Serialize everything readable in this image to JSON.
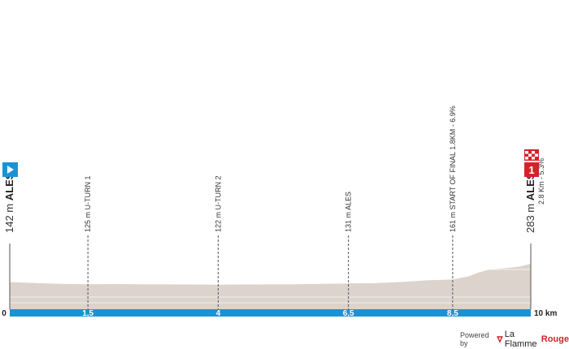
{
  "chart_data": {
    "type": "area",
    "xlabel": "",
    "ylabel": "",
    "xlim": [
      0,
      10
    ],
    "x_tick_labels": [
      "0",
      "1,5",
      "4",
      "6,5",
      "8,5",
      "10 km"
    ],
    "x_ticks": [
      0,
      1.5,
      4,
      6.5,
      8.5,
      10
    ],
    "profile": {
      "x": [
        0,
        0.5,
        1,
        1.5,
        2,
        2.5,
        3,
        3.5,
        4,
        4.5,
        5,
        5.5,
        6,
        6.5,
        7,
        7.5,
        8,
        8.5,
        8.8,
        9,
        9.2,
        9.5,
        9.8,
        10
      ],
      "elevation": [
        142,
        134,
        128,
        125,
        126,
        125,
        124,
        123,
        122,
        123,
        124,
        125,
        128,
        131,
        133,
        142,
        155,
        161,
        185,
        215,
        238,
        248,
        262,
        283
      ]
    },
    "waypoints": [
      {
        "x": 0,
        "label_alt": "142 m",
        "label_name": "ALES",
        "kind": "start"
      },
      {
        "x": 1.5,
        "label": "125 m U-TURN 1"
      },
      {
        "x": 4,
        "label": "122 m U-TURN 2"
      },
      {
        "x": 6.5,
        "label": "131 m ALES"
      },
      {
        "x": 8.5,
        "label": "161 m START OF FINAL 1.8KM - 6.9%"
      },
      {
        "x": 10,
        "label_alt": "283 m",
        "label_name": "ALES",
        "sub": "2.8 Km - 5.3%",
        "kind": "finish"
      }
    ]
  },
  "colors": {
    "profile_fill": "#dcd3cd",
    "km_bar": "#1a93d5",
    "start_marker": "#1a93d5",
    "finish_marker": "#d2232a"
  },
  "footer": {
    "powered_by": "Powered by",
    "brand_prefix": "La Flamme",
    "brand_suffix": "Rouge"
  },
  "icons": {
    "start": "play-flag-icon",
    "finish": "checkered-flag-icon",
    "brand": "flame-v-icon"
  }
}
